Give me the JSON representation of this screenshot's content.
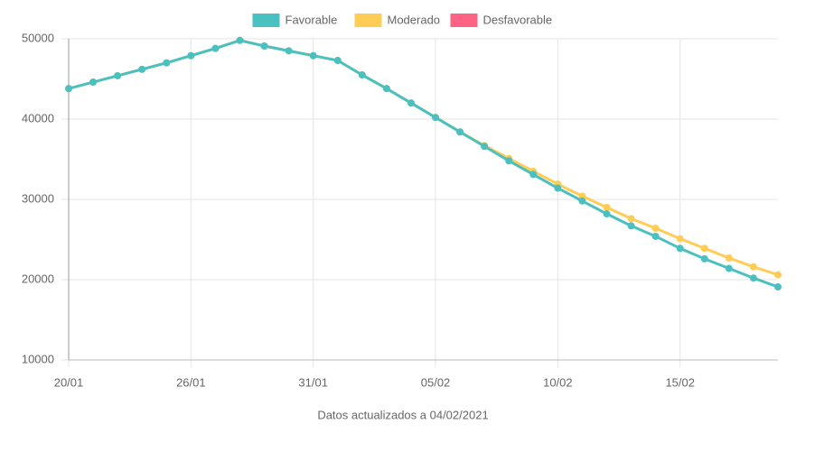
{
  "chart_data": {
    "type": "line",
    "categories": [
      "20/01",
      null,
      null,
      null,
      null,
      "26/01",
      null,
      null,
      null,
      null,
      "31/01",
      null,
      null,
      null,
      null,
      "05/02",
      null,
      null,
      null,
      null,
      "10/02",
      null,
      null,
      null,
      null,
      "15/02",
      null,
      null,
      null,
      null
    ],
    "series": [
      {
        "name": "Favorable",
        "color": "#4bc0c0",
        "values": [
          43800,
          44600,
          45400,
          46200,
          47000,
          47900,
          48800,
          49800,
          49100,
          48500,
          47900,
          47300,
          45500,
          43800,
          42000,
          40200,
          38400,
          36600,
          34800,
          33100,
          31400,
          29800,
          28200,
          26700,
          25400,
          23900,
          22600,
          21400,
          20200,
          19100
        ]
      },
      {
        "name": "Moderado",
        "color": "#ffcd56",
        "values": [
          43800,
          44600,
          45400,
          46200,
          47000,
          47900,
          48800,
          49800,
          49100,
          48500,
          47900,
          47300,
          45500,
          43800,
          42000,
          40200,
          38400,
          36700,
          35100,
          33500,
          31900,
          30400,
          29000,
          27600,
          26400,
          25100,
          23900,
          22700,
          21600,
          20600
        ]
      },
      {
        "name": "Desfavorable",
        "color": "#ff6384",
        "values": [
          null,
          null,
          null,
          null,
          null,
          null,
          null,
          null,
          null,
          null,
          null,
          null,
          null,
          null,
          null,
          null,
          null,
          null,
          null,
          null,
          null,
          null,
          null,
          null,
          null,
          null,
          null,
          null,
          null,
          null
        ]
      }
    ],
    "ylim": [
      10000,
      50000
    ],
    "yticks": [
      10000,
      20000,
      30000,
      40000,
      50000
    ],
    "grid": true,
    "footnote": "Datos actualizados a 04/02/2021"
  }
}
